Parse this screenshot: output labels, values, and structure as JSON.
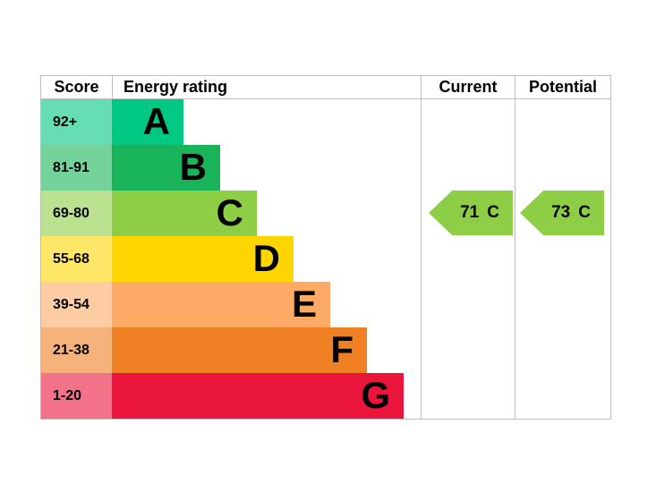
{
  "header": {
    "score": "Score",
    "energy_rating": "Energy rating",
    "current": "Current",
    "potential": "Potential"
  },
  "bands": [
    {
      "letter": "A",
      "score_range": "92+",
      "color": "#00c781",
      "tint_color": "#66ddb3"
    },
    {
      "letter": "B",
      "score_range": "81-91",
      "color": "#19b459",
      "tint_color": "#75d29b"
    },
    {
      "letter": "C",
      "score_range": "69-80",
      "color": "#8dce46",
      "tint_color": "#bbe290"
    },
    {
      "letter": "D",
      "score_range": "55-68",
      "color": "#ffd500",
      "tint_color": "#ffe666"
    },
    {
      "letter": "E",
      "score_range": "39-54",
      "color": "#fcaa65",
      "tint_color": "#fdcca3"
    },
    {
      "letter": "F",
      "score_range": "21-38",
      "color": "#ef8023",
      "tint_color": "#f5b37b"
    },
    {
      "letter": "G",
      "score_range": "1-20",
      "color": "#e9153b",
      "tint_color": "#f27389"
    }
  ],
  "ratings": {
    "current": {
      "value": "71",
      "band": "C",
      "band_index": 2,
      "arrow_color": "#8dce46"
    },
    "potential": {
      "value": "73",
      "band": "C",
      "band_index": 2,
      "arrow_color": "#8dce46"
    }
  },
  "chart_data": {
    "type": "bar",
    "orientation": "horizontal",
    "title": "Energy rating",
    "categories": [
      "A",
      "B",
      "C",
      "D",
      "E",
      "F",
      "G"
    ],
    "score_ranges": [
      "92+",
      "81-91",
      "69-80",
      "55-68",
      "39-54",
      "21-38",
      "1-20"
    ],
    "bar_relative_lengths": [
      1,
      2,
      3,
      4,
      5,
      6,
      7
    ],
    "band_colors": [
      "#00c781",
      "#19b459",
      "#8dce46",
      "#ffd500",
      "#fcaa65",
      "#ef8023",
      "#e9153b"
    ],
    "markers": [
      {
        "label": "Current",
        "value": 71,
        "band": "C"
      },
      {
        "label": "Potential",
        "value": 73,
        "band": "C"
      }
    ],
    "legend_position": "none",
    "grid": false
  }
}
